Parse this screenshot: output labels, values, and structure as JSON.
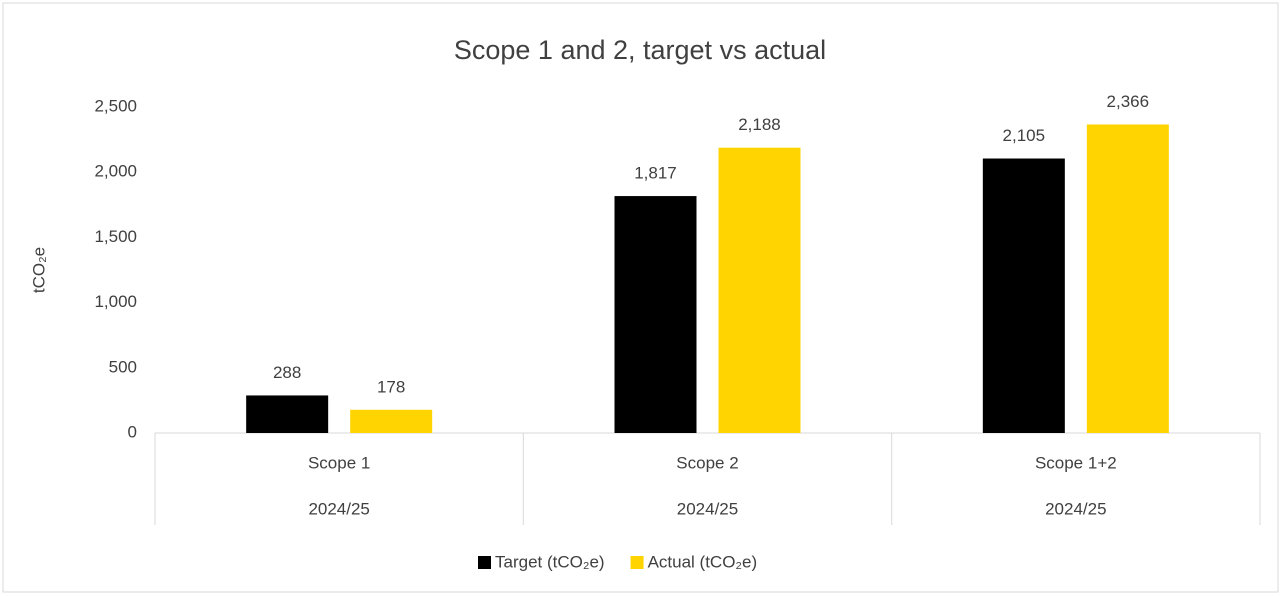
{
  "chart_data": {
    "type": "bar",
    "title": "Scope 1 and 2, target vs actual",
    "y_label": "tCO₂e",
    "categories": [
      "Scope 1",
      "Scope 2",
      "Scope 1+2"
    ],
    "category_groups": [
      "2024/25",
      "2024/25",
      "2024/25"
    ],
    "series": [
      {
        "name": "Target (tCO₂e)",
        "color": "#000000",
        "values": [
          288,
          1817,
          2105
        ],
        "value_labels": [
          "288",
          "1,817",
          "2,105"
        ]
      },
      {
        "name": "Actual (tCO₂e)",
        "color": "#ffd400",
        "values": [
          178,
          2188,
          2366
        ],
        "value_labels": [
          "178",
          "2,188",
          "2,366"
        ]
      }
    ],
    "ylim": [
      0,
      2500
    ],
    "yticks": [
      0,
      500,
      {
        "value": 1000,
        "label": "1,000"
      },
      {
        "value": 1500,
        "label": "1,500"
      },
      {
        "value": 2000,
        "label": "2,000"
      },
      {
        "value": 2500,
        "label": "2,500"
      }
    ],
    "grid": false,
    "legend": "bottom"
  }
}
